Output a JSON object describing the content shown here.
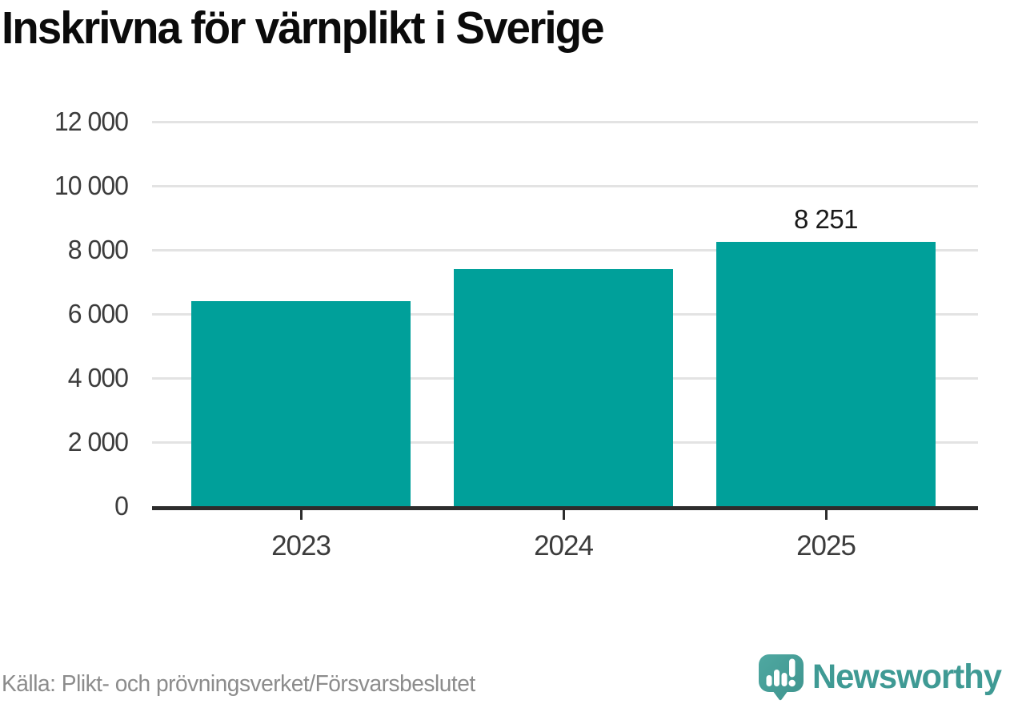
{
  "header": {
    "title": "Inskrivna för värnplikt i Sverige"
  },
  "chart_data": {
    "type": "bar",
    "title": "Inskrivna för värnplikt i Sverige",
    "categories": [
      "2023",
      "2024",
      "2025"
    ],
    "values": [
      6400,
      7400,
      8251
    ],
    "bar_labels": [
      "",
      "",
      "8 251"
    ],
    "yticks": [
      {
        "value": 0,
        "label": "0"
      },
      {
        "value": 2000,
        "label": "2 000"
      },
      {
        "value": 4000,
        "label": "4 000"
      },
      {
        "value": 6000,
        "label": "6 000"
      },
      {
        "value": 8000,
        "label": "8 000"
      },
      {
        "value": 10000,
        "label": "10 000"
      },
      {
        "value": 12000,
        "label": "12 000"
      }
    ],
    "ylim": [
      0,
      12000
    ],
    "xlabel": "",
    "ylabel": "",
    "grid": "horizontal",
    "legend": "none",
    "bar_color": "#00A09A",
    "axis_color": "#2d2d2d",
    "gridline_color": "#e3e3e3",
    "label_color": "#3c3c3c"
  },
  "footer": {
    "source": "Källa: Plikt- och prövningsverket/Försvarsbeslutet",
    "brand": {
      "name": "Newsworthy",
      "color": "#3F9A94",
      "icon": "newsworthy-speech-bubble-bar-chart-icon",
      "icon_color": "#48A19B"
    }
  }
}
